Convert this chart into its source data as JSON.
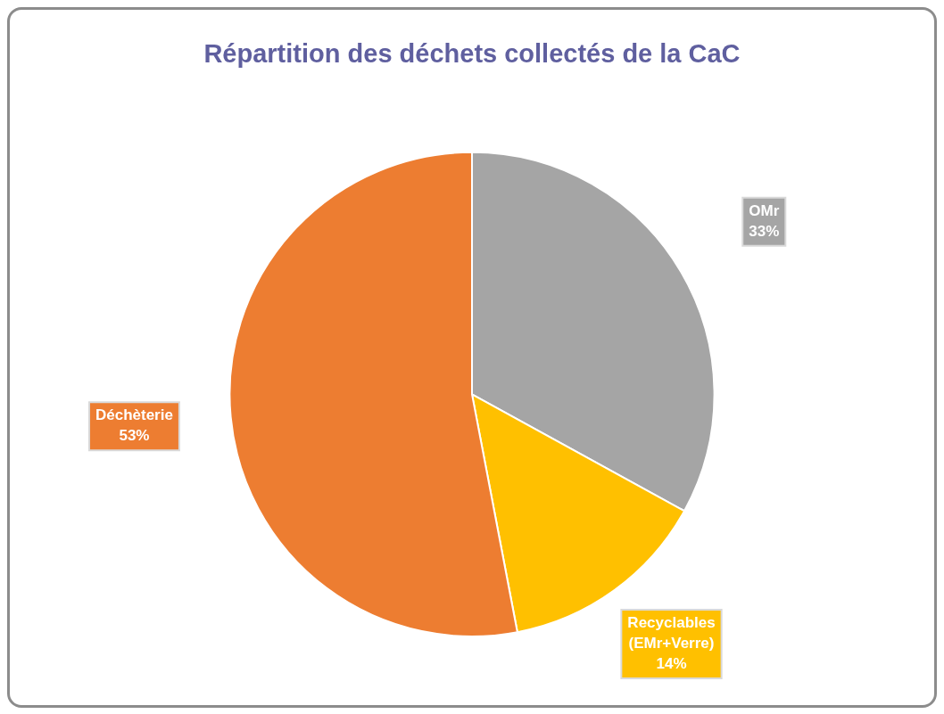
{
  "chart_data": {
    "type": "pie",
    "title": "Répartition des déchets collectés de la CaC",
    "categories": [
      "OMr",
      "Recyclables (EMr+Verre)",
      "Déchèterie"
    ],
    "values": [
      33,
      14,
      53
    ],
    "value_labels": [
      "33%",
      "14%",
      "53%"
    ],
    "colors": [
      "#a5a5a5",
      "#ffc000",
      "#ed7d31"
    ],
    "legend": false
  }
}
